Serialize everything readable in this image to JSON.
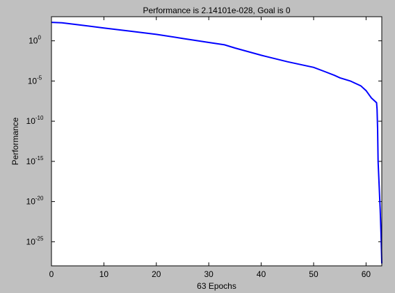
{
  "chart_data": {
    "type": "line",
    "title": "Performance is 2.14101e-028, Goal is 0",
    "xlabel": "63 Epochs",
    "ylabel": "Performance",
    "xlim": [
      0,
      63
    ],
    "ylim_log10": [
      -28,
      3
    ],
    "yscale": "log",
    "grid": false,
    "legend": "none",
    "x_ticks": [
      0,
      10,
      20,
      30,
      40,
      50,
      60
    ],
    "y_ticks": [
      {
        "base": "10",
        "exp": "0",
        "log10": 0
      },
      {
        "base": "10",
        "exp": "-5",
        "log10": -5
      },
      {
        "base": "10",
        "exp": "-10",
        "log10": -10
      },
      {
        "base": "10",
        "exp": "-15",
        "log10": -15
      },
      {
        "base": "10",
        "exp": "-20",
        "log10": -20
      },
      {
        "base": "10",
        "exp": "-25",
        "log10": -25
      }
    ],
    "series": [
      {
        "color": "#0000ff",
        "x": [
          0,
          2,
          5,
          10,
          15,
          20,
          25,
          30,
          33,
          35,
          40,
          45,
          50,
          52,
          54,
          55,
          57,
          58,
          59,
          60,
          61,
          61.5,
          62,
          62.1,
          62.2,
          62.3,
          62.5,
          62.7,
          62.85,
          63
        ],
        "log10_y": [
          2.3,
          2.25,
          2.0,
          1.6,
          1.2,
          0.8,
          0.3,
          -0.2,
          -0.5,
          -0.9,
          -1.8,
          -2.6,
          -3.3,
          -3.8,
          -4.3,
          -4.6,
          -5.0,
          -5.3,
          -5.6,
          -6.2,
          -7.1,
          -7.4,
          -7.7,
          -8.5,
          -11.0,
          -15.0,
          -18.0,
          -21.0,
          -24.0,
          -27.7
        ]
      }
    ],
    "colors": {
      "figure_background": "#c0c0c0",
      "axes_background": "#ffffff",
      "line": "#0000ff"
    }
  }
}
